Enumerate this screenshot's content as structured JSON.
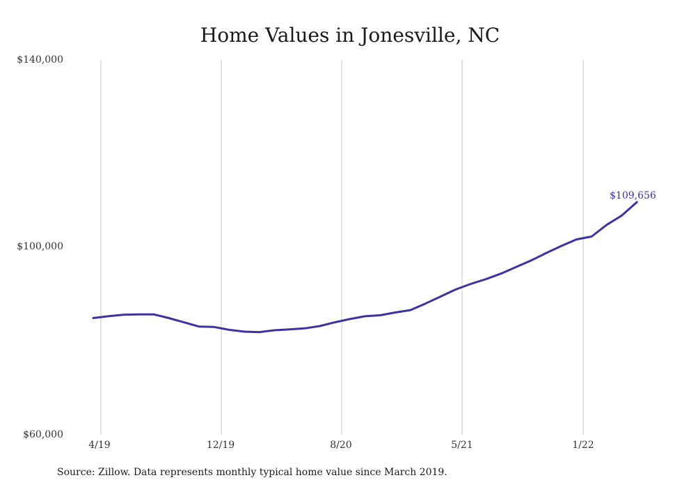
{
  "chart_data": {
    "type": "line",
    "title": "Home Values in Jonesville, NC",
    "xlabel": "",
    "ylabel": "",
    "x_ticks": [
      "4/19",
      "12/19",
      "8/20",
      "5/21",
      "1/22"
    ],
    "y_ticks": [
      "$60,000",
      "$100,000",
      "$140,000"
    ],
    "y_tick_values": [
      60000,
      100000,
      140000
    ],
    "ylim": [
      60000,
      140000
    ],
    "grid": "vertical",
    "series": [
      {
        "color": "#3a33a0",
        "x": [
          "2019-03",
          "2019-04",
          "2019-05",
          "2019-06",
          "2019-07",
          "2019-08",
          "2019-09",
          "2019-10",
          "2019-11",
          "2019-12",
          "2020-01",
          "2020-02",
          "2020-03",
          "2020-04",
          "2020-05",
          "2020-06",
          "2020-07",
          "2020-08",
          "2020-09",
          "2020-10",
          "2020-11",
          "2020-12",
          "2021-01",
          "2021-02",
          "2021-03",
          "2021-04",
          "2021-05",
          "2021-06",
          "2021-07",
          "2021-08",
          "2021-09",
          "2021-10",
          "2021-11",
          "2021-12",
          "2022-01",
          "2022-02",
          "2022-03"
        ],
        "values": [
          84900,
          85300,
          85600,
          85700,
          85700,
          84900,
          84000,
          83100,
          83000,
          82400,
          82000,
          81900,
          82300,
          82500,
          82700,
          83200,
          84000,
          84700,
          85300,
          85500,
          86100,
          86600,
          88000,
          89500,
          91000,
          92200,
          93200,
          94400,
          95800,
          97200,
          98800,
          100300,
          101700,
          102300,
          104800,
          106800,
          109656
        ]
      }
    ],
    "end_label": "$109,656",
    "source": "Source: Zillow. Data represents monthly typical home value since March 2019."
  }
}
